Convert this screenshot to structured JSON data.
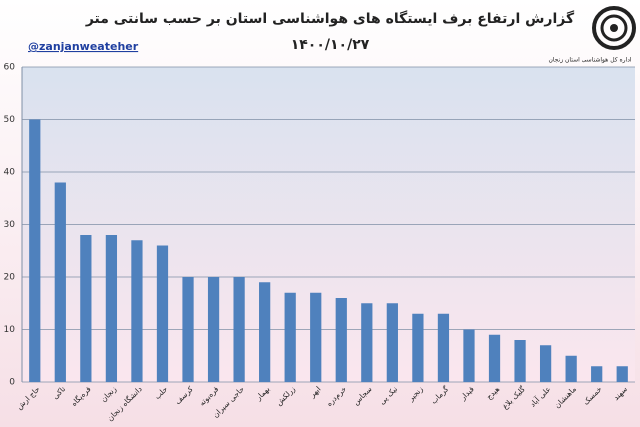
{
  "chart_data": {
    "type": "bar",
    "title": "گزارش ارتفاع برف ایستگاه های هواشناسی استان بر حسب سانتی متر",
    "subtitle": "۱۴۰۰/۱۰/۲۷",
    "handle": "@zanjanweateher",
    "logo_text": "اداره کل هواشناسی استان زنجان",
    "categories": [
      "حاج ارش",
      "تاکی",
      "قره‌پگاه",
      "زنجان",
      "دانشگاه زنجان",
      "حلب",
      "کرسف",
      "قره‌بوته",
      "حاجی سیران",
      "بهمار",
      "زرلکش",
      "ابهر",
      "خرم‌دره",
      "سجاس",
      "نیک پی",
      "زنجیر",
      "گرماب",
      "قیدار",
      "هیدج",
      "گلیک بلاغ",
      "علی آباد",
      "ماهنشان",
      "خمسک",
      "سهند"
    ],
    "values": [
      50,
      38,
      28,
      28,
      27,
      26,
      20,
      20,
      20,
      19,
      17,
      17,
      16,
      15,
      15,
      13,
      13,
      10,
      9,
      8,
      7,
      5,
      3,
      3
    ],
    "color": "#4f81bd",
    "ylim": [
      0,
      60
    ],
    "yticks": [
      0,
      10,
      20,
      30,
      40,
      50,
      60
    ],
    "grid": true
  }
}
